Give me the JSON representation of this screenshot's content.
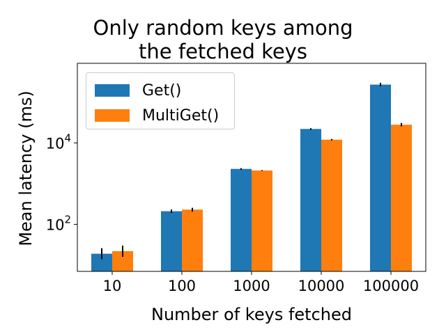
{
  "chart_data": {
    "type": "bar",
    "title": [
      "Only random keys among",
      "the fetched keys"
    ],
    "xlabel": "Number of keys fetched",
    "ylabel": "Mean latency (ms)",
    "yscale": "log",
    "ylim": [
      7,
      900000
    ],
    "yticks": [
      {
        "value": 100,
        "base": "10",
        "exp": "2"
      },
      {
        "value": 10000,
        "base": "10",
        "exp": "4"
      }
    ],
    "categories": [
      "10",
      "100",
      "1000",
      "10000",
      "100000"
    ],
    "series": [
      {
        "name": "Get()",
        "color": "#1f77b4",
        "values": [
          19,
          210,
          2300,
          22000,
          270000
        ],
        "err_low": [
          14,
          190,
          2200,
          21000,
          245000
        ],
        "err_high": [
          26,
          232,
          2400,
          23000,
          300000
        ]
      },
      {
        "name": "MultiGet()",
        "color": "#ff7f0e",
        "values": [
          22,
          230,
          2100,
          12000,
          28000
        ],
        "err_low": [
          16,
          205,
          2050,
          11500,
          25500
        ],
        "err_high": [
          30,
          255,
          2150,
          12500,
          31000
        ]
      }
    ],
    "legend_position": "upper-left",
    "grid": false
  }
}
